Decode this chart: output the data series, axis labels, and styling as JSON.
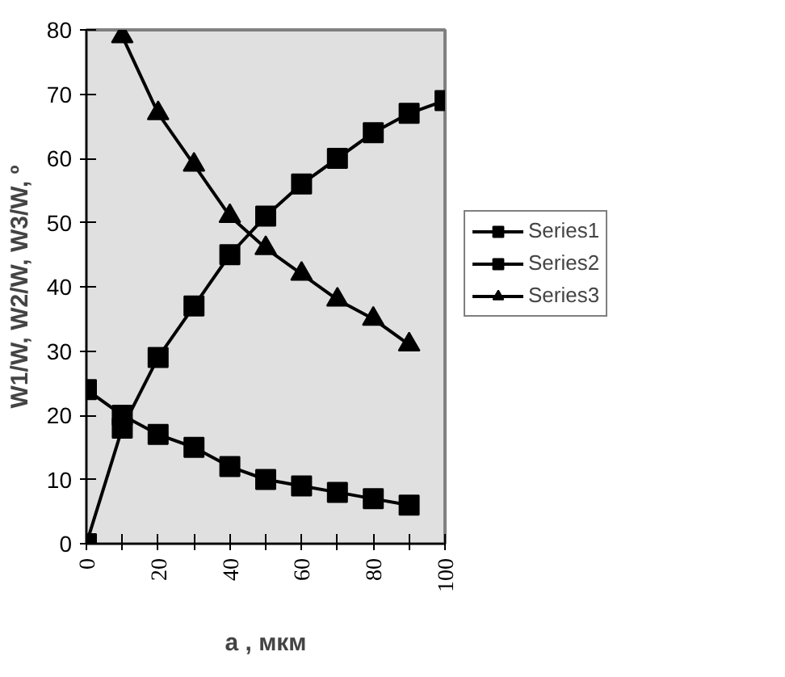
{
  "chart_data": {
    "type": "line",
    "xlabel": "a , мкм",
    "ylabel": "W1/W, W2/W, W3/W, º",
    "xlim": [
      0,
      100
    ],
    "ylim": [
      0,
      80
    ],
    "xticks": [
      0,
      {
        "value": 10,
        "label": null
      },
      20,
      {
        "value": 30,
        "label": null
      },
      40,
      {
        "value": 50,
        "label": null
      },
      60,
      {
        "value": 70,
        "label": null
      },
      80,
      {
        "value": 90,
        "label": null
      },
      100
    ],
    "yticks": [
      0,
      10,
      20,
      30,
      40,
      50,
      60,
      70,
      80
    ],
    "grid": false,
    "legend": "right",
    "line_style": "solid",
    "series": [
      {
        "name": "Series1",
        "color": "#000000",
        "marker": "square",
        "x": [
          0,
          10,
          20,
          30,
          40,
          50,
          60,
          70,
          80,
          90,
          100
        ],
        "values": [
          0,
          18,
          29,
          37,
          45,
          51,
          56,
          60,
          64,
          67,
          69
        ]
      },
      {
        "name": "Series2",
        "color": "#000000",
        "marker": "square",
        "x": [
          0,
          10,
          20,
          30,
          40,
          50,
          60,
          70,
          80,
          90
        ],
        "values": [
          24,
          20,
          17,
          15,
          12,
          10,
          9,
          8,
          7,
          6
        ]
      },
      {
        "name": "Series3",
        "color": "#000000",
        "marker": "triangle",
        "x": [
          10,
          20,
          30,
          40,
          50,
          60,
          70,
          80,
          90
        ],
        "values": [
          79,
          67,
          59,
          51,
          46,
          42,
          38,
          35,
          31
        ]
      }
    ]
  }
}
